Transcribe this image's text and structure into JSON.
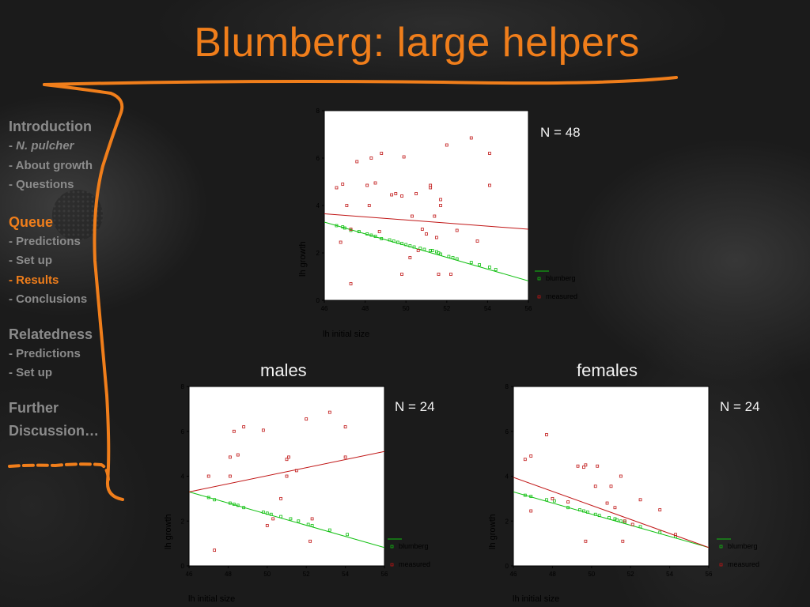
{
  "slide": {
    "title": "Blumberg: large helpers"
  },
  "nav": {
    "introduction": "Introduction",
    "intro_items": [
      "- ",
      "N. pulcher",
      "- About growth",
      "- Questions"
    ],
    "queue": "Queue",
    "queue_items": [
      "- Predictions",
      "- Set up",
      "- Results",
      "- Conclusions"
    ],
    "relatedness": "Relatedness",
    "relatedness_items": [
      "- Predictions",
      "- Set up"
    ],
    "further_1": "Further",
    "further_2": "Discussion…"
  },
  "colors": {
    "accent": "#f07e1b",
    "blumberg": "#11c011",
    "measured": "#c01515",
    "nav_text": "#8b8b8b"
  },
  "labels": {
    "males": "males",
    "females": "females"
  },
  "chart_data": [
    {
      "id": "all",
      "type": "scatter",
      "n_label": "N = 48",
      "xlabel": "lh initial size",
      "ylabel": "lh growth",
      "xlim": [
        46,
        56
      ],
      "ylim": [
        0,
        8
      ],
      "xticks": [
        46,
        48,
        50,
        52,
        54,
        56
      ],
      "yticks": [
        0,
        2,
        4,
        6,
        8
      ],
      "legend": "right",
      "series": [
        {
          "name": "blumberg",
          "color": "#11c011",
          "points": [
            [
              46.6,
              3.15
            ],
            [
              46.9,
              3.1
            ],
            [
              47.0,
              3.05
            ],
            [
              47.3,
              2.95
            ],
            [
              47.7,
              2.9
            ],
            [
              48.1,
              2.8
            ],
            [
              48.3,
              2.75
            ],
            [
              48.5,
              2.7
            ],
            [
              48.8,
              2.6
            ],
            [
              49.2,
              2.55
            ],
            [
              49.4,
              2.5
            ],
            [
              49.6,
              2.45
            ],
            [
              49.8,
              2.4
            ],
            [
              50.0,
              2.35
            ],
            [
              50.2,
              2.3
            ],
            [
              50.4,
              2.25
            ],
            [
              50.7,
              2.2
            ],
            [
              50.9,
              2.15
            ],
            [
              51.2,
              2.1
            ],
            [
              51.3,
              2.1
            ],
            [
              51.5,
              2.05
            ],
            [
              51.6,
              2.0
            ],
            [
              51.7,
              1.95
            ],
            [
              52.1,
              1.85
            ],
            [
              52.3,
              1.8
            ],
            [
              52.5,
              1.75
            ],
            [
              53.2,
              1.6
            ],
            [
              53.6,
              1.5
            ],
            [
              54.1,
              1.4
            ],
            [
              54.4,
              1.3
            ]
          ],
          "fit": [
            [
              46,
              3.3
            ],
            [
              56,
              0.82
            ]
          ]
        },
        {
          "name": "measured",
          "color": "#c01515",
          "points": [
            [
              46.6,
              4.75
            ],
            [
              46.8,
              2.45
            ],
            [
              46.9,
              4.9
            ],
            [
              47.1,
              4.0
            ],
            [
              47.3,
              3.0
            ],
            [
              47.3,
              0.7
            ],
            [
              47.6,
              5.85
            ],
            [
              48.1,
              4.85
            ],
            [
              48.2,
              4.0
            ],
            [
              48.3,
              6.0
            ],
            [
              48.5,
              4.95
            ],
            [
              48.7,
              2.9
            ],
            [
              48.8,
              6.2
            ],
            [
              49.3,
              4.45
            ],
            [
              49.5,
              4.5
            ],
            [
              49.8,
              1.1
            ],
            [
              49.8,
              4.4
            ],
            [
              49.9,
              6.05
            ],
            [
              50.2,
              1.8
            ],
            [
              50.3,
              3.55
            ],
            [
              50.5,
              4.5
            ],
            [
              50.6,
              2.1
            ],
            [
              50.8,
              3.0
            ],
            [
              51.0,
              2.8
            ],
            [
              51.2,
              4.85
            ],
            [
              51.2,
              4.75
            ],
            [
              51.4,
              3.55
            ],
            [
              51.5,
              2.65
            ],
            [
              51.6,
              1.1
            ],
            [
              51.7,
              4.0
            ],
            [
              51.7,
              4.25
            ],
            [
              52.0,
              6.55
            ],
            [
              52.2,
              1.1
            ],
            [
              52.5,
              2.95
            ],
            [
              53.2,
              6.85
            ],
            [
              53.5,
              2.5
            ],
            [
              54.1,
              4.85
            ],
            [
              54.1,
              6.2
            ]
          ],
          "fit": [
            [
              46,
              3.65
            ],
            [
              56,
              3.0
            ]
          ]
        }
      ]
    },
    {
      "id": "males",
      "type": "scatter",
      "title": "males",
      "n_label": "N = 24",
      "xlabel": "lh initial size",
      "ylabel": "lh growth",
      "xlim": [
        46,
        56
      ],
      "ylim": [
        0,
        8
      ],
      "xticks": [
        46,
        48,
        50,
        52,
        54,
        56
      ],
      "yticks": [
        0,
        2,
        4,
        6,
        8
      ],
      "legend": "right",
      "series": [
        {
          "name": "blumberg",
          "color": "#11c011",
          "points": [
            [
              47.0,
              3.05
            ],
            [
              47.3,
              2.95
            ],
            [
              48.1,
              2.8
            ],
            [
              48.3,
              2.75
            ],
            [
              48.5,
              2.7
            ],
            [
              48.8,
              2.6
            ],
            [
              49.8,
              2.4
            ],
            [
              50.0,
              2.35
            ],
            [
              50.2,
              2.3
            ],
            [
              50.7,
              2.2
            ],
            [
              51.2,
              2.1
            ],
            [
              51.6,
              2.0
            ],
            [
              52.1,
              1.85
            ],
            [
              52.3,
              1.8
            ],
            [
              53.2,
              1.6
            ],
            [
              54.1,
              1.4
            ]
          ],
          "fit": [
            [
              46,
              3.3
            ],
            [
              56,
              0.82
            ]
          ]
        },
        {
          "name": "measured",
          "color": "#c01515",
          "points": [
            [
              47.0,
              4.0
            ],
            [
              47.3,
              0.7
            ],
            [
              48.1,
              4.85
            ],
            [
              48.1,
              4.0
            ],
            [
              48.3,
              6.0
            ],
            [
              48.5,
              4.95
            ],
            [
              48.8,
              6.2
            ],
            [
              49.8,
              6.05
            ],
            [
              50.0,
              1.8
            ],
            [
              50.3,
              2.1
            ],
            [
              50.7,
              3.0
            ],
            [
              51.0,
              4.0
            ],
            [
              51.0,
              4.75
            ],
            [
              51.1,
              4.85
            ],
            [
              51.5,
              4.25
            ],
            [
              52.0,
              6.55
            ],
            [
              52.2,
              1.1
            ],
            [
              52.3,
              2.1
            ],
            [
              53.2,
              6.85
            ],
            [
              54.0,
              6.2
            ],
            [
              54.0,
              4.85
            ]
          ],
          "fit": [
            [
              46,
              3.3
            ],
            [
              56,
              5.1
            ]
          ]
        }
      ]
    },
    {
      "id": "females",
      "type": "scatter",
      "title": "females",
      "n_label": "N = 24",
      "xlabel": "lh initial size",
      "ylabel": "lh growth",
      "xlim": [
        46,
        56
      ],
      "ylim": [
        0,
        8
      ],
      "xticks": [
        46,
        48,
        50,
        52,
        54,
        56
      ],
      "yticks": [
        0,
        2,
        4,
        6,
        8
      ],
      "legend": "right",
      "series": [
        {
          "name": "blumberg",
          "color": "#11c011",
          "points": [
            [
              46.6,
              3.15
            ],
            [
              46.9,
              3.1
            ],
            [
              47.7,
              2.95
            ],
            [
              48.1,
              2.9
            ],
            [
              48.8,
              2.6
            ],
            [
              49.4,
              2.5
            ],
            [
              49.6,
              2.45
            ],
            [
              49.8,
              2.4
            ],
            [
              50.2,
              2.3
            ],
            [
              50.4,
              2.25
            ],
            [
              50.9,
              2.15
            ],
            [
              51.2,
              2.1
            ],
            [
              51.3,
              2.05
            ],
            [
              51.5,
              2.0
            ],
            [
              51.7,
              1.95
            ],
            [
              52.5,
              1.75
            ],
            [
              53.5,
              1.5
            ],
            [
              54.3,
              1.3
            ]
          ],
          "fit": [
            [
              46,
              3.3
            ],
            [
              56,
              0.82
            ]
          ]
        },
        {
          "name": "measured",
          "color": "#c01515",
          "points": [
            [
              46.6,
              4.75
            ],
            [
              46.9,
              4.9
            ],
            [
              46.9,
              2.45
            ],
            [
              47.7,
              5.85
            ],
            [
              48.0,
              3.0
            ],
            [
              48.8,
              2.85
            ],
            [
              49.3,
              4.45
            ],
            [
              49.6,
              4.4
            ],
            [
              49.7,
              4.5
            ],
            [
              49.7,
              1.1
            ],
            [
              50.2,
              3.55
            ],
            [
              50.3,
              4.45
            ],
            [
              50.8,
              2.8
            ],
            [
              51.0,
              3.55
            ],
            [
              51.2,
              2.6
            ],
            [
              51.5,
              4.0
            ],
            [
              51.6,
              1.1
            ],
            [
              51.7,
              2.0
            ],
            [
              52.1,
              1.85
            ],
            [
              52.5,
              2.95
            ],
            [
              53.5,
              2.5
            ],
            [
              54.3,
              1.4
            ]
          ],
          "fit": [
            [
              46,
              3.95
            ],
            [
              56,
              0.82
            ]
          ]
        }
      ]
    }
  ]
}
